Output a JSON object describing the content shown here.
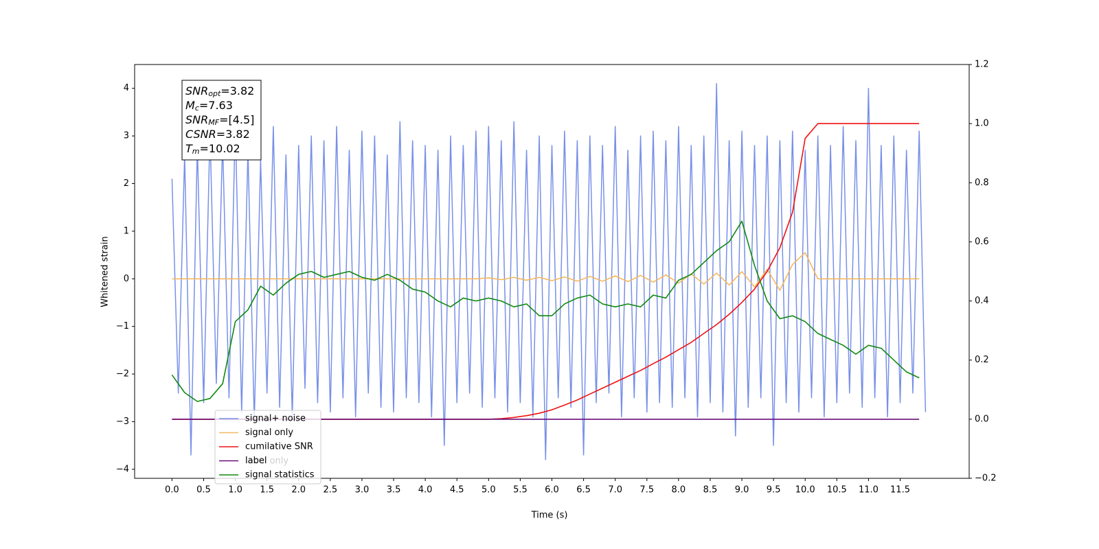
{
  "chart_data": {
    "type": "line",
    "xlabel": "Time (s)",
    "ylabel": "Whitened strain",
    "xlim": [
      -0.59,
      12.59
    ],
    "ylim": [
      -4.19,
      4.5
    ],
    "y2lim": [
      -0.2,
      1.2
    ],
    "xticks": [
      {
        "value": 0,
        "label": "0.0"
      },
      0.5,
      {
        "value": 1,
        "label": "1.0"
      },
      1.5,
      {
        "value": 2,
        "label": "2.0"
      },
      2.5,
      {
        "value": 3,
        "label": "3.0"
      },
      3.5,
      {
        "value": 4,
        "label": "4.0"
      },
      4.5,
      {
        "value": 5,
        "label": "5.0"
      },
      5.5,
      {
        "value": 6,
        "label": "6.0"
      },
      6.5,
      {
        "value": 7,
        "label": "7.0"
      },
      7.5,
      {
        "value": 8,
        "label": "8.0"
      },
      8.5,
      {
        "value": 9,
        "label": "9.0"
      },
      9.5,
      {
        "value": 10,
        "label": "10.0"
      },
      10.5,
      {
        "value": 11,
        "label": "11.0"
      },
      11.5
    ],
    "yticks": [
      {
        "value": -4,
        "label": "−4"
      },
      {
        "value": -3,
        "label": "−3"
      },
      {
        "value": -2,
        "label": "−2"
      },
      {
        "value": -1,
        "label": "−1"
      },
      0,
      1,
      2,
      3,
      4
    ],
    "y2ticks": [
      {
        "value": -0.2,
        "label": "−0.2"
      },
      {
        "value": 0,
        "label": "0.0"
      },
      0.2,
      0.4,
      0.6,
      0.8,
      {
        "value": 1,
        "label": "1.0"
      },
      1.2
    ],
    "grid": false,
    "legend": "lower left",
    "annotation_box": [
      {
        "name": "SNR",
        "sub": "opt",
        "value": "=3.82"
      },
      {
        "name": "M",
        "sub": "c",
        "value": "=7.63"
      },
      {
        "name": "SNR",
        "sub": "MF",
        "value": "=[4.5]"
      },
      {
        "name": "CSNR",
        "value": "=3.82"
      },
      {
        "name": "T",
        "sub": "m",
        "value": "=10.02"
      }
    ],
    "annotation": "label only",
    "series": [
      {
        "name": "signal+ noise",
        "color": "#7790e8",
        "x": [
          0,
          0.1,
          0.2,
          0.3,
          0.4,
          0.5,
          0.6,
          0.7,
          0.8,
          0.9,
          1,
          1.1,
          1.2,
          1.3,
          1.4,
          1.5,
          1.6,
          1.7,
          1.8,
          1.9,
          2,
          2.1,
          2.2,
          2.3,
          2.4,
          2.5,
          2.6,
          2.7,
          2.8,
          2.9,
          3,
          3.1,
          3.2,
          3.3,
          3.4,
          3.5,
          3.6,
          3.7,
          3.8,
          3.9,
          4,
          4.1,
          4.2,
          4.3,
          4.4,
          4.5,
          4.6,
          4.7,
          4.8,
          4.9,
          5,
          5.1,
          5.2,
          5.3,
          5.4,
          5.5,
          5.6,
          5.7,
          5.8,
          5.9,
          6,
          6.1,
          6.2,
          6.3,
          6.4,
          6.5,
          6.6,
          6.7,
          6.8,
          6.9,
          7,
          7.1,
          7.2,
          7.3,
          7.4,
          7.5,
          7.6,
          7.7,
          7.8,
          7.9,
          8,
          8.1,
          8.2,
          8.3,
          8.4,
          8.5,
          8.6,
          8.7,
          8.8,
          8.9,
          9,
          9.1,
          9.2,
          9.3,
          9.4,
          9.5,
          9.6,
          9.7,
          9.8,
          9.9,
          10,
          10.1,
          10.2,
          10.3,
          10.4,
          10.5,
          10.6,
          10.7,
          10.8,
          10.9,
          11,
          11.1,
          11.2,
          11.3,
          11.4,
          11.5,
          11.6,
          11.7,
          11.8,
          11.9
        ],
        "values": [
          2.1,
          -2.4,
          2.6,
          -3.7,
          2.8,
          -2.6,
          3.1,
          -2.2,
          2.9,
          -2.5,
          3.3,
          -2.8,
          2.7,
          -3.0,
          2.5,
          -2.4,
          3.2,
          -2.7,
          2.6,
          -2.9,
          2.8,
          -2.3,
          3.0,
          -2.6,
          2.9,
          -2.8,
          3.2,
          -2.5,
          2.7,
          -2.9,
          3.1,
          -2.4,
          3.0,
          -2.7,
          2.6,
          -2.8,
          3.3,
          -2.5,
          2.9,
          -2.6,
          2.8,
          -2.9,
          2.7,
          -3.5,
          3.0,
          -2.6,
          2.8,
          -2.4,
          3.1,
          -2.7,
          3.2,
          -2.5,
          2.9,
          -2.8,
          3.3,
          -2.6,
          2.7,
          -2.9,
          3.0,
          -3.8,
          2.8,
          -2.5,
          3.1,
          -2.7,
          2.9,
          -3.7,
          3.0,
          -2.6,
          2.8,
          -2.4,
          3.2,
          -2.9,
          2.7,
          -2.5,
          3.0,
          -2.8,
          3.1,
          -2.6,
          2.9,
          -2.7,
          3.2,
          -2.5,
          2.8,
          -2.9,
          3.0,
          -2.6,
          4.1,
          -2.8,
          2.9,
          -3.3,
          3.1,
          -2.7,
          2.8,
          -2.5,
          3.0,
          -3.5,
          2.9,
          -2.6,
          3.1,
          -2.8,
          2.7,
          -2.5,
          3.0,
          -2.9,
          2.8,
          -2.6,
          3.2,
          -2.4,
          2.9,
          -2.7,
          4.0,
          -2.5,
          2.8,
          -2.9,
          3.0,
          -2.6,
          2.7,
          -2.4,
          3.1,
          -2.8
        ]
      },
      {
        "name": "signal only",
        "color": "#f4b860",
        "x": [
          0,
          0.2,
          0.4,
          0.6,
          0.8,
          1,
          1.2,
          1.4,
          1.6,
          1.8,
          2,
          2.2,
          2.4,
          2.6,
          2.8,
          3,
          3.2,
          3.4,
          3.6,
          3.8,
          4,
          4.2,
          4.4,
          4.6,
          4.8,
          5,
          5.2,
          5.4,
          5.6,
          5.8,
          6,
          6.2,
          6.4,
          6.6,
          6.8,
          7,
          7.2,
          7.4,
          7.6,
          7.8,
          8,
          8.2,
          8.4,
          8.6,
          8.8,
          9,
          9.2,
          9.4,
          9.6,
          9.8,
          10,
          10.2,
          10.4,
          10.6,
          10.8,
          11,
          11.2,
          11.4,
          11.6,
          11.8
        ],
        "values": [
          0,
          0,
          0,
          0,
          0,
          0,
          0,
          0,
          0,
          0,
          0,
          0,
          0,
          0,
          0,
          0,
          0,
          0,
          0,
          0,
          0,
          0,
          0,
          0,
          0,
          0.02,
          -0.02,
          0.03,
          -0.03,
          0.03,
          -0.04,
          0.04,
          -0.05,
          0.05,
          -0.05,
          0.06,
          -0.06,
          0.07,
          -0.07,
          0.08,
          -0.09,
          0.1,
          -0.11,
          0.12,
          -0.13,
          0.15,
          -0.17,
          0.2,
          -0.24,
          0.3,
          0.55,
          0,
          0,
          0,
          0,
          0,
          0,
          0,
          0,
          0
        ]
      },
      {
        "name": "cumilative SNR",
        "color": "#ee1111",
        "axis": "y2",
        "x": [
          0,
          0.2,
          0.4,
          0.6,
          0.8,
          1,
          1.2,
          1.4,
          1.6,
          1.8,
          2,
          2.2,
          2.4,
          2.6,
          2.8,
          3,
          3.2,
          3.4,
          3.6,
          3.8,
          4,
          4.2,
          4.4,
          4.6,
          4.8,
          5,
          5.2,
          5.4,
          5.6,
          5.8,
          6,
          6.2,
          6.4,
          6.6,
          6.8,
          7,
          7.2,
          7.4,
          7.6,
          7.8,
          8,
          8.2,
          8.4,
          8.6,
          8.8,
          9,
          9.2,
          9.4,
          9.6,
          9.8,
          10,
          10.2,
          10.4,
          10.6,
          10.8,
          11,
          11.2,
          11.4,
          11.6,
          11.8
        ],
        "values": [
          0,
          0,
          0,
          0,
          0,
          0,
          0,
          0,
          0,
          0,
          0,
          0,
          0,
          0,
          0,
          0,
          0,
          0,
          0,
          0,
          0,
          0,
          0,
          0,
          0,
          0,
          0.002,
          0.006,
          0.012,
          0.02,
          0.032,
          0.048,
          0.065,
          0.085,
          0.105,
          0.125,
          0.145,
          0.165,
          0.188,
          0.21,
          0.235,
          0.26,
          0.29,
          0.32,
          0.355,
          0.395,
          0.44,
          0.5,
          0.58,
          0.7,
          0.95,
          1,
          1,
          1,
          1,
          1,
          1,
          1,
          1,
          1
        ]
      },
      {
        "name": "label",
        "color": "#6a0d7a",
        "axis": "y2",
        "x": [
          0,
          0.2,
          0.4,
          0.6,
          0.8,
          1,
          1.2,
          1.4,
          1.6,
          1.8,
          2,
          2.2,
          2.4,
          2.6,
          2.8,
          3,
          3.2,
          3.4,
          3.6,
          3.8,
          4,
          4.2,
          4.4,
          4.6,
          4.8,
          5,
          5.2,
          5.4,
          5.6,
          5.8,
          6,
          6.2,
          6.4,
          6.6,
          6.8,
          7,
          7.2,
          7.4,
          7.6,
          7.8,
          8,
          8.2,
          8.4,
          8.6,
          8.8,
          9,
          9.2,
          9.4,
          9.6,
          9.8,
          10,
          10.2,
          10.4,
          10.6,
          10.8,
          11,
          11.2,
          11.4,
          11.6,
          11.8
        ],
        "values": [
          0,
          0,
          0,
          0,
          0,
          0,
          0,
          0,
          0,
          0,
          0,
          0,
          0,
          0,
          0,
          0,
          0,
          0,
          0,
          0,
          0,
          0,
          0,
          0,
          0,
          0,
          0,
          0,
          0,
          0,
          0,
          0,
          0,
          0,
          0,
          0,
          0,
          0,
          0,
          0,
          0,
          0,
          0,
          0,
          0,
          0,
          0,
          0,
          0,
          0,
          0,
          0,
          0,
          0,
          0,
          0,
          0,
          0,
          0,
          0
        ]
      },
      {
        "name": "signal statistics",
        "color": "#118811",
        "axis": "y2",
        "x": [
          0,
          0.2,
          0.4,
          0.6,
          0.8,
          1,
          1.2,
          1.4,
          1.6,
          1.8,
          2,
          2.2,
          2.4,
          2.6,
          2.8,
          3,
          3.2,
          3.4,
          3.6,
          3.8,
          4,
          4.2,
          4.4,
          4.6,
          4.8,
          5,
          5.2,
          5.4,
          5.6,
          5.8,
          6,
          6.2,
          6.4,
          6.6,
          6.8,
          7,
          7.2,
          7.4,
          7.6,
          7.8,
          8,
          8.2,
          8.4,
          8.6,
          8.8,
          9,
          9.2,
          9.4,
          9.6,
          9.8,
          10,
          10.2,
          10.4,
          10.6,
          10.8,
          11,
          11.2,
          11.4,
          11.6,
          11.8
        ],
        "values": [
          0.15,
          0.09,
          0.06,
          0.07,
          0.12,
          0.33,
          0.37,
          0.45,
          0.42,
          0.46,
          0.49,
          0.5,
          0.48,
          0.49,
          0.5,
          0.48,
          0.47,
          0.49,
          0.47,
          0.44,
          0.43,
          0.4,
          0.38,
          0.41,
          0.4,
          0.41,
          0.4,
          0.38,
          0.39,
          0.35,
          0.35,
          0.39,
          0.41,
          0.42,
          0.39,
          0.38,
          0.39,
          0.38,
          0.42,
          0.41,
          0.47,
          0.49,
          0.53,
          0.57,
          0.6,
          0.67,
          0.52,
          0.4,
          0.34,
          0.35,
          0.33,
          0.29,
          0.27,
          0.25,
          0.22,
          0.25,
          0.24,
          0.2,
          0.16,
          0.14
        ]
      }
    ]
  }
}
